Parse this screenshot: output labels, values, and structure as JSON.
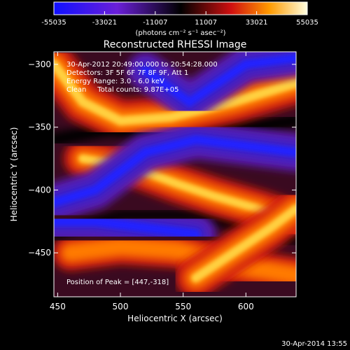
{
  "chart_data": {
    "type": "heatmap",
    "title": "Reconstructed RHESSI Image",
    "xlabel": "Heliocentric X (arcsec)",
    "ylabel": "Heliocentric Y (arcsec)",
    "xlim": [
      447,
      640
    ],
    "ylim": [
      -485,
      -290
    ],
    "x_ticks": [
      "450",
      "500",
      "550",
      "600"
    ],
    "y_ticks": [
      "-300",
      "-350",
      "-400",
      "-450"
    ],
    "colorbar": {
      "ticks": [
        "-55035",
        "-33021",
        "-11007",
        "11007",
        "33021",
        "55035"
      ],
      "range": [
        -55035,
        55035
      ],
      "units_label": "(photons cm⁻² s⁻¹ asec⁻²)"
    },
    "info_lines": [
      "30-Apr-2012 20:49:00.000 to 20:54:28.000",
      "Detectors: 3F 5F 6F 7F 8F 9F, Att 1",
      "Energy Range: 3.0 - 6.0 keV",
      "Clean     Total counts: 9.87E+05"
    ],
    "peak_label": "Position of Peak = [447,-318]",
    "peak_position": [
      447,
      -318
    ],
    "bands": [
      {
        "id": "upper-left-bright",
        "kind": "bright",
        "path": [
          [
            447,
            -300
          ],
          [
            470,
            -330
          ],
          [
            500,
            -345
          ],
          [
            540,
            -342
          ],
          [
            590,
            -330
          ],
          [
            640,
            -315
          ]
        ],
        "intensity": 55035
      },
      {
        "id": "central-band",
        "kind": "bright",
        "path": [
          [
            470,
            -375
          ],
          [
            510,
            -382
          ],
          [
            545,
            -395
          ],
          [
            575,
            -405
          ],
          [
            610,
            -415
          ],
          [
            640,
            -425
          ]
        ],
        "intensity": 40000
      },
      {
        "id": "lower-band",
        "kind": "bright",
        "path": [
          [
            460,
            -450
          ],
          [
            500,
            -445
          ],
          [
            545,
            -448
          ],
          [
            590,
            -460
          ],
          [
            640,
            -468
          ]
        ],
        "intensity": 30000
      },
      {
        "id": "right-band",
        "kind": "bright",
        "path": [
          [
            560,
            -470
          ],
          [
            590,
            -450
          ],
          [
            620,
            -430
          ],
          [
            640,
            -415
          ]
        ],
        "intensity": 50000
      },
      {
        "id": "purple-upper",
        "kind": "negative",
        "path": [
          [
            520,
            -305
          ],
          [
            555,
            -330
          ],
          [
            600,
            -300
          ],
          [
            640,
            -295
          ]
        ],
        "intensity": -35000
      },
      {
        "id": "purple-mid",
        "kind": "negative",
        "path": [
          [
            447,
            -410
          ],
          [
            480,
            -400
          ],
          [
            520,
            -370
          ],
          [
            560,
            -360
          ],
          [
            600,
            -365
          ],
          [
            640,
            -370
          ]
        ],
        "intensity": -40000
      },
      {
        "id": "purple-low",
        "kind": "negative",
        "path": [
          [
            447,
            -425
          ],
          [
            480,
            -425
          ],
          [
            520,
            -430
          ],
          [
            560,
            -435
          ]
        ],
        "intensity": -50000
      }
    ]
  },
  "footer_date": "30-Apr-2014 13:55"
}
